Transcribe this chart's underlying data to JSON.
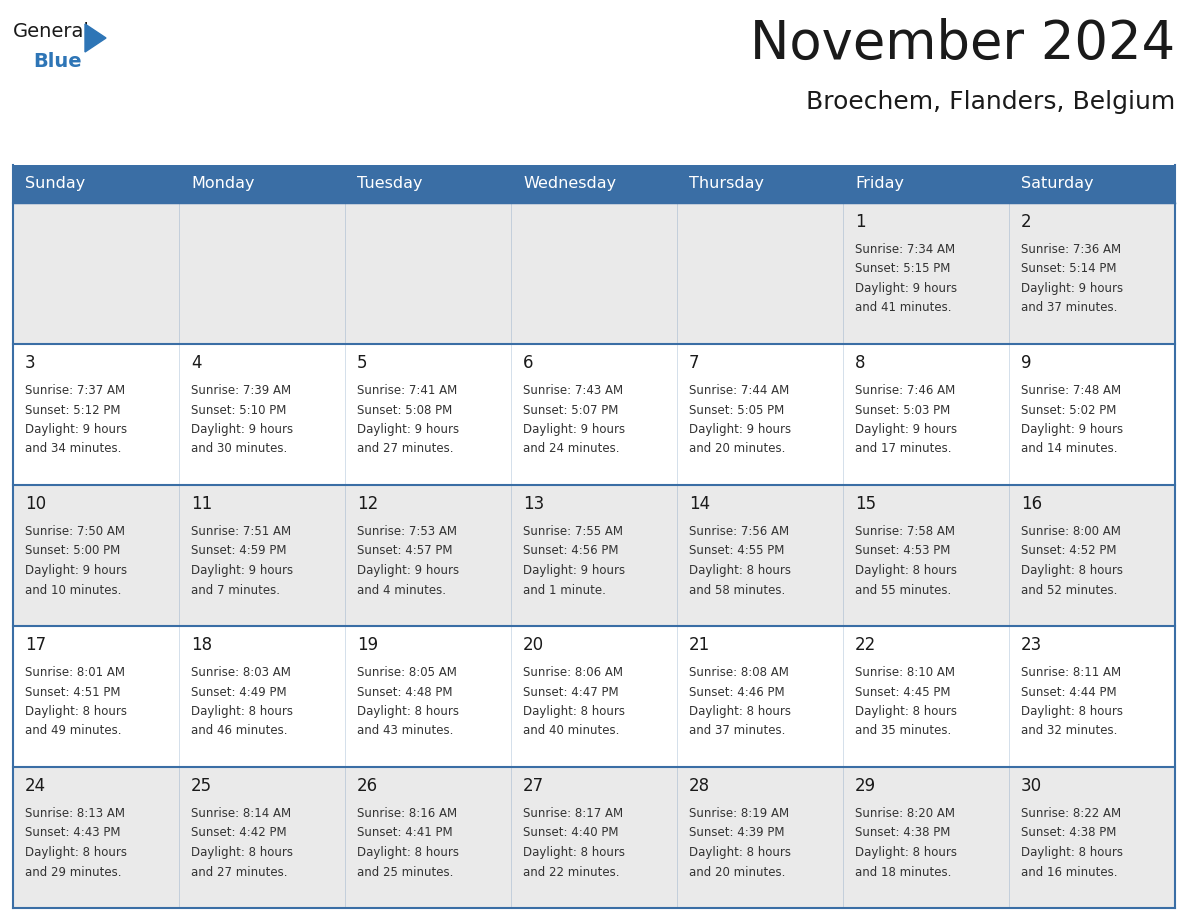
{
  "title": "November 2024",
  "subtitle": "Broechem, Flanders, Belgium",
  "header_bg": "#3a6ea5",
  "header_text_color": "#FFFFFF",
  "cell_bg_white": "#FFFFFF",
  "cell_bg_gray": "#EAEAEA",
  "border_color": "#3a6ea5",
  "day_headers": [
    "Sunday",
    "Monday",
    "Tuesday",
    "Wednesday",
    "Thursday",
    "Friday",
    "Saturday"
  ],
  "title_color": "#1a1a1a",
  "subtitle_color": "#1a1a1a",
  "day_number_color": "#1a1a1a",
  "cell_text_color": "#333333",
  "logo_general_color": "#1a1a1a",
  "logo_blue_color": "#2e75b6",
  "logo_triangle_color": "#2e75b6",
  "weeks": [
    [
      {
        "day": "",
        "sunrise": "",
        "sunset": "",
        "daylight": ""
      },
      {
        "day": "",
        "sunrise": "",
        "sunset": "",
        "daylight": ""
      },
      {
        "day": "",
        "sunrise": "",
        "sunset": "",
        "daylight": ""
      },
      {
        "day": "",
        "sunrise": "",
        "sunset": "",
        "daylight": ""
      },
      {
        "day": "",
        "sunrise": "",
        "sunset": "",
        "daylight": ""
      },
      {
        "day": "1",
        "sunrise": "7:34 AM",
        "sunset": "5:15 PM",
        "daylight": "9 hours\nand 41 minutes."
      },
      {
        "day": "2",
        "sunrise": "7:36 AM",
        "sunset": "5:14 PM",
        "daylight": "9 hours\nand 37 minutes."
      }
    ],
    [
      {
        "day": "3",
        "sunrise": "7:37 AM",
        "sunset": "5:12 PM",
        "daylight": "9 hours\nand 34 minutes."
      },
      {
        "day": "4",
        "sunrise": "7:39 AM",
        "sunset": "5:10 PM",
        "daylight": "9 hours\nand 30 minutes."
      },
      {
        "day": "5",
        "sunrise": "7:41 AM",
        "sunset": "5:08 PM",
        "daylight": "9 hours\nand 27 minutes."
      },
      {
        "day": "6",
        "sunrise": "7:43 AM",
        "sunset": "5:07 PM",
        "daylight": "9 hours\nand 24 minutes."
      },
      {
        "day": "7",
        "sunrise": "7:44 AM",
        "sunset": "5:05 PM",
        "daylight": "9 hours\nand 20 minutes."
      },
      {
        "day": "8",
        "sunrise": "7:46 AM",
        "sunset": "5:03 PM",
        "daylight": "9 hours\nand 17 minutes."
      },
      {
        "day": "9",
        "sunrise": "7:48 AM",
        "sunset": "5:02 PM",
        "daylight": "9 hours\nand 14 minutes."
      }
    ],
    [
      {
        "day": "10",
        "sunrise": "7:50 AM",
        "sunset": "5:00 PM",
        "daylight": "9 hours\nand 10 minutes."
      },
      {
        "day": "11",
        "sunrise": "7:51 AM",
        "sunset": "4:59 PM",
        "daylight": "9 hours\nand 7 minutes."
      },
      {
        "day": "12",
        "sunrise": "7:53 AM",
        "sunset": "4:57 PM",
        "daylight": "9 hours\nand 4 minutes."
      },
      {
        "day": "13",
        "sunrise": "7:55 AM",
        "sunset": "4:56 PM",
        "daylight": "9 hours\nand 1 minute."
      },
      {
        "day": "14",
        "sunrise": "7:56 AM",
        "sunset": "4:55 PM",
        "daylight": "8 hours\nand 58 minutes."
      },
      {
        "day": "15",
        "sunrise": "7:58 AM",
        "sunset": "4:53 PM",
        "daylight": "8 hours\nand 55 minutes."
      },
      {
        "day": "16",
        "sunrise": "8:00 AM",
        "sunset": "4:52 PM",
        "daylight": "8 hours\nand 52 minutes."
      }
    ],
    [
      {
        "day": "17",
        "sunrise": "8:01 AM",
        "sunset": "4:51 PM",
        "daylight": "8 hours\nand 49 minutes."
      },
      {
        "day": "18",
        "sunrise": "8:03 AM",
        "sunset": "4:49 PM",
        "daylight": "8 hours\nand 46 minutes."
      },
      {
        "day": "19",
        "sunrise": "8:05 AM",
        "sunset": "4:48 PM",
        "daylight": "8 hours\nand 43 minutes."
      },
      {
        "day": "20",
        "sunrise": "8:06 AM",
        "sunset": "4:47 PM",
        "daylight": "8 hours\nand 40 minutes."
      },
      {
        "day": "21",
        "sunrise": "8:08 AM",
        "sunset": "4:46 PM",
        "daylight": "8 hours\nand 37 minutes."
      },
      {
        "day": "22",
        "sunrise": "8:10 AM",
        "sunset": "4:45 PM",
        "daylight": "8 hours\nand 35 minutes."
      },
      {
        "day": "23",
        "sunrise": "8:11 AM",
        "sunset": "4:44 PM",
        "daylight": "8 hours\nand 32 minutes."
      }
    ],
    [
      {
        "day": "24",
        "sunrise": "8:13 AM",
        "sunset": "4:43 PM",
        "daylight": "8 hours\nand 29 minutes."
      },
      {
        "day": "25",
        "sunrise": "8:14 AM",
        "sunset": "4:42 PM",
        "daylight": "8 hours\nand 27 minutes."
      },
      {
        "day": "26",
        "sunrise": "8:16 AM",
        "sunset": "4:41 PM",
        "daylight": "8 hours\nand 25 minutes."
      },
      {
        "day": "27",
        "sunrise": "8:17 AM",
        "sunset": "4:40 PM",
        "daylight": "8 hours\nand 22 minutes."
      },
      {
        "day": "28",
        "sunrise": "8:19 AM",
        "sunset": "4:39 PM",
        "daylight": "8 hours\nand 20 minutes."
      },
      {
        "day": "29",
        "sunrise": "8:20 AM",
        "sunset": "4:38 PM",
        "daylight": "8 hours\nand 18 minutes."
      },
      {
        "day": "30",
        "sunrise": "8:22 AM",
        "sunset": "4:38 PM",
        "daylight": "8 hours\nand 16 minutes."
      }
    ]
  ]
}
